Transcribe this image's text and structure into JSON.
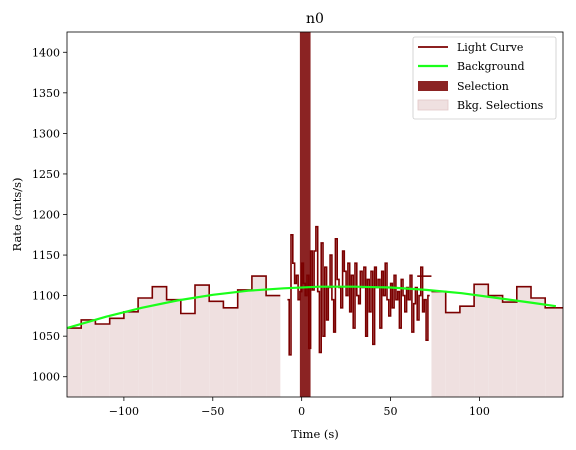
{
  "chart_data": {
    "type": "line",
    "title": "n0",
    "xlabel": "Time (s)",
    "ylabel": "Rate (cnts/s)",
    "xlim": [
      -132,
      147
    ],
    "ylim": [
      975,
      1425
    ],
    "x_ticks": [
      -100,
      -50,
      0,
      50,
      100
    ],
    "x_tick_labels": [
      "−100",
      "−50",
      "0",
      "50",
      "100"
    ],
    "y_ticks": [
      1000,
      1050,
      1100,
      1150,
      1200,
      1250,
      1300,
      1350,
      1400
    ],
    "y_tick_labels": [
      "1000",
      "1050",
      "1100",
      "1150",
      "1200",
      "1250",
      "1300",
      "1350",
      "1400"
    ],
    "grid": false,
    "legend_position": "top-right",
    "legend": [
      "Light Curve",
      "Background",
      "Selection",
      "Bkg. Selections"
    ],
    "colors": {
      "light_curve": "#7b0000",
      "background": "#1aff1a",
      "selection": "#8b2323",
      "bkg_selection": "#efe0e0",
      "bkg_selection_edge": "#e2c8c8"
    },
    "light_curve": {
      "coarse_left": {
        "edges": [
          -132,
          -124,
          -116,
          -108,
          -100,
          -92,
          -84,
          -76,
          -68,
          -60,
          -52,
          -44,
          -36,
          -28,
          -20,
          -12
        ],
        "values": [
          1060,
          1070,
          1065,
          1072,
          1080,
          1097,
          1111,
          1095,
          1078,
          1113,
          1093,
          1085,
          1107,
          1124,
          1100
        ]
      },
      "fine": {
        "edges": [
          -8,
          -7,
          -6,
          -5,
          -4,
          -3,
          -2,
          -1,
          0,
          1,
          2,
          3,
          4,
          5,
          6,
          7,
          8,
          9,
          10,
          11,
          12,
          13,
          14,
          15,
          16,
          17,
          18,
          19,
          20,
          21,
          22,
          23,
          24,
          25,
          26,
          27,
          28,
          29,
          30,
          31,
          32,
          33,
          34,
          35,
          36,
          37,
          38,
          39,
          40,
          41,
          42,
          43,
          44,
          45,
          46,
          47,
          48,
          49,
          50,
          51,
          52,
          53,
          54,
          55,
          56,
          57,
          58,
          59,
          60,
          61,
          62,
          63,
          64,
          65,
          66,
          67,
          68,
          69,
          70,
          71,
          72
        ],
        "values": [
          1095,
          1027,
          1175,
          1140,
          1115,
          1125,
          1095,
          1105,
          1140,
          1115,
          1100,
          1125,
          1035,
          1155,
          1107,
          1155,
          1185,
          1105,
          1030,
          1165,
          1050,
          1135,
          1070,
          1110,
          1150,
          1095,
          1055,
          1170,
          1120,
          1110,
          1085,
          1155,
          1130,
          1100,
          1140,
          1080,
          1125,
          1060,
          1140,
          1100,
          1090,
          1130,
          1110,
          1135,
          1050,
          1120,
          1080,
          1130,
          1040,
          1135,
          1110,
          1120,
          1060,
          1130,
          1100,
          1140,
          1095,
          1075,
          1115,
          1085,
          1125,
          1095,
          1105,
          1060,
          1120,
          1100,
          1080,
          1110,
          1095,
          1125,
          1055,
          1090,
          1110,
          1070,
          1100,
          1135,
          1080,
          1095,
          1045,
          1100
        ]
      },
      "isolated": {
        "x0": 65,
        "x1": 73,
        "value": 1124
      },
      "coarse_right": {
        "edges": [
          73,
          81,
          89,
          97,
          105,
          113,
          121,
          129,
          137,
          147
        ],
        "values": [
          1105,
          1079,
          1087,
          1114,
          1100,
          1092,
          1111,
          1097,
          1085
        ]
      }
    },
    "background_curve": {
      "x": [
        -132,
        -110,
        -90,
        -70,
        -50,
        -30,
        -10,
        10,
        30,
        50,
        70,
        90,
        110,
        130,
        143
      ],
      "y": [
        1060,
        1074,
        1085,
        1094,
        1101,
        1106,
        1109,
        1111,
        1111,
        1110,
        1107,
        1103,
        1097,
        1091,
        1087
      ]
    },
    "selection": {
      "x0": -1,
      "x1": 5
    },
    "bkg_selections": [
      {
        "x0": -132,
        "x1": -17
      },
      {
        "x0": 81,
        "x1": 147
      }
    ]
  }
}
